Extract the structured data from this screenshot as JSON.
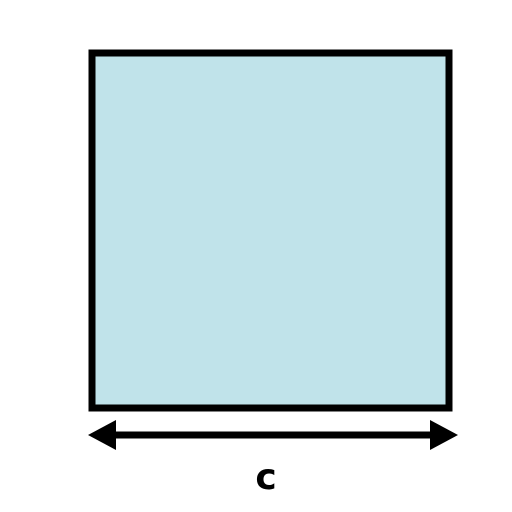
{
  "shape": {
    "fill_color": "#c0e3ea",
    "stroke_color": "#000000"
  },
  "dimension": {
    "label": "c",
    "arrow_color": "#000000"
  }
}
